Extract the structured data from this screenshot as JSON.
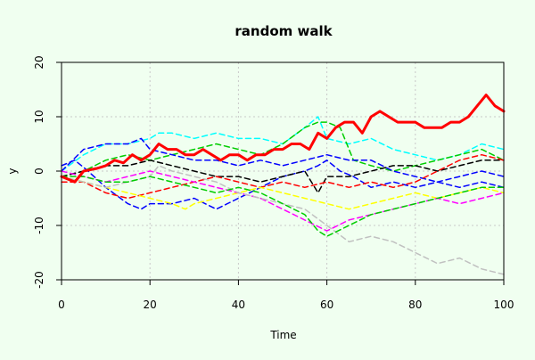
{
  "chart_data": {
    "type": "line",
    "title": "random walk",
    "xlabel": "Time",
    "ylabel": "y",
    "xlim": [
      0,
      100
    ],
    "ylim": [
      -20,
      20
    ],
    "x_ticks": [
      0,
      20,
      40,
      60,
      80,
      100
    ],
    "y_ticks": [
      -20,
      -10,
      0,
      10,
      20
    ],
    "grid": true,
    "legend": "none",
    "colors": {
      "background": "#f0fff0",
      "grid": "#c8c8c8",
      "axis": "#000000"
    },
    "series": [
      {
        "color": "#ff0000",
        "style": "solid",
        "width": 3,
        "points": [
          [
            0,
            -1
          ],
          [
            3,
            -2
          ],
          [
            5,
            0
          ],
          [
            8,
            0.5
          ],
          [
            10,
            1
          ],
          [
            12,
            2
          ],
          [
            14,
            1.5
          ],
          [
            16,
            3
          ],
          [
            18,
            2
          ],
          [
            20,
            3
          ],
          [
            22,
            5
          ],
          [
            24,
            4
          ],
          [
            26,
            4
          ],
          [
            28,
            3
          ],
          [
            30,
            3
          ],
          [
            32,
            4
          ],
          [
            34,
            3
          ],
          [
            36,
            2
          ],
          [
            38,
            3
          ],
          [
            40,
            3
          ],
          [
            42,
            2
          ],
          [
            44,
            3
          ],
          [
            46,
            3
          ],
          [
            48,
            4
          ],
          [
            50,
            4
          ],
          [
            52,
            5
          ],
          [
            54,
            5
          ],
          [
            56,
            4
          ],
          [
            58,
            7
          ],
          [
            60,
            6
          ],
          [
            62,
            8
          ],
          [
            64,
            9
          ],
          [
            66,
            9
          ],
          [
            68,
            7
          ],
          [
            70,
            10
          ],
          [
            72,
            11
          ],
          [
            74,
            10
          ],
          [
            76,
            9
          ],
          [
            78,
            9
          ],
          [
            80,
            9
          ],
          [
            82,
            8
          ],
          [
            84,
            8
          ],
          [
            86,
            8
          ],
          [
            88,
            9
          ],
          [
            90,
            9
          ],
          [
            92,
            10
          ],
          [
            94,
            12
          ],
          [
            96,
            14
          ],
          [
            98,
            12
          ],
          [
            100,
            11
          ]
        ]
      },
      {
        "color": "#00ffff",
        "style": "dashed",
        "width": 1.5,
        "points": [
          [
            0,
            0
          ],
          [
            5,
            3
          ],
          [
            10,
            5
          ],
          [
            15,
            5
          ],
          [
            20,
            6
          ],
          [
            22,
            7
          ],
          [
            25,
            7
          ],
          [
            30,
            6
          ],
          [
            35,
            7
          ],
          [
            40,
            6
          ],
          [
            45,
            6
          ],
          [
            50,
            5
          ],
          [
            55,
            8
          ],
          [
            58,
            10
          ],
          [
            60,
            6
          ],
          [
            65,
            5
          ],
          [
            70,
            6
          ],
          [
            75,
            4
          ],
          [
            80,
            3
          ],
          [
            85,
            2
          ],
          [
            90,
            3
          ],
          [
            95,
            5
          ],
          [
            100,
            4
          ]
        ]
      },
      {
        "color": "#00cd00",
        "style": "dashed",
        "width": 1.5,
        "points": [
          [
            0,
            -1
          ],
          [
            5,
            0
          ],
          [
            10,
            2
          ],
          [
            15,
            3
          ],
          [
            20,
            2
          ],
          [
            25,
            3
          ],
          [
            30,
            4
          ],
          [
            35,
            5
          ],
          [
            40,
            4
          ],
          [
            45,
            3
          ],
          [
            50,
            5
          ],
          [
            55,
            8
          ],
          [
            58,
            9
          ],
          [
            60,
            9
          ],
          [
            63,
            8
          ],
          [
            66,
            2
          ],
          [
            70,
            1
          ],
          [
            75,
            0
          ],
          [
            80,
            1
          ],
          [
            85,
            2
          ],
          [
            90,
            3
          ],
          [
            95,
            4
          ],
          [
            100,
            2
          ]
        ]
      },
      {
        "color": "#0000ff",
        "style": "dashed",
        "width": 1.5,
        "points": [
          [
            0,
            1
          ],
          [
            3,
            2
          ],
          [
            6,
            0
          ],
          [
            10,
            -3
          ],
          [
            15,
            -6
          ],
          [
            18,
            -7
          ],
          [
            20,
            -6
          ],
          [
            25,
            -6
          ],
          [
            30,
            -5
          ],
          [
            35,
            -7
          ],
          [
            40,
            -5
          ],
          [
            45,
            -3
          ],
          [
            50,
            -1
          ],
          [
            55,
            0
          ],
          [
            58,
            1
          ],
          [
            60,
            2
          ],
          [
            63,
            0
          ],
          [
            66,
            -1
          ],
          [
            70,
            -3
          ],
          [
            75,
            -2
          ],
          [
            80,
            -3
          ],
          [
            85,
            -2
          ],
          [
            90,
            -1
          ],
          [
            95,
            0
          ],
          [
            100,
            -1
          ]
        ]
      },
      {
        "color": "#0000ff",
        "style": "dashed",
        "width": 1.5,
        "points": [
          [
            0,
            0
          ],
          [
            5,
            4
          ],
          [
            10,
            5
          ],
          [
            15,
            5
          ],
          [
            18,
            6
          ],
          [
            20,
            4
          ],
          [
            25,
            3
          ],
          [
            30,
            2
          ],
          [
            35,
            2
          ],
          [
            40,
            1
          ],
          [
            45,
            2
          ],
          [
            50,
            1
          ],
          [
            55,
            2
          ],
          [
            60,
            3
          ],
          [
            65,
            2
          ],
          [
            70,
            2
          ],
          [
            75,
            0
          ],
          [
            80,
            -1
          ],
          [
            85,
            -2
          ],
          [
            90,
            -3
          ],
          [
            95,
            -2
          ],
          [
            100,
            -3
          ]
        ]
      },
      {
        "color": "#000000",
        "style": "dashed",
        "width": 1.5,
        "points": [
          [
            0,
            -1
          ],
          [
            5,
            0
          ],
          [
            10,
            1
          ],
          [
            15,
            1
          ],
          [
            20,
            2
          ],
          [
            25,
            1
          ],
          [
            30,
            0
          ],
          [
            35,
            -1
          ],
          [
            40,
            -1
          ],
          [
            45,
            -2
          ],
          [
            50,
            -1
          ],
          [
            55,
            0
          ],
          [
            58,
            -4
          ],
          [
            60,
            -1
          ],
          [
            65,
            -1
          ],
          [
            70,
            0
          ],
          [
            75,
            1
          ],
          [
            80,
            1
          ],
          [
            85,
            0
          ],
          [
            90,
            1
          ],
          [
            95,
            2
          ],
          [
            100,
            2
          ]
        ]
      },
      {
        "color": "#ff0000",
        "style": "dashed",
        "width": 1.5,
        "points": [
          [
            0,
            -2
          ],
          [
            5,
            -2
          ],
          [
            10,
            -4
          ],
          [
            15,
            -5
          ],
          [
            20,
            -4
          ],
          [
            25,
            -3
          ],
          [
            30,
            -2
          ],
          [
            35,
            -1
          ],
          [
            40,
            -2
          ],
          [
            45,
            -3
          ],
          [
            50,
            -2
          ],
          [
            55,
            -3
          ],
          [
            60,
            -2
          ],
          [
            65,
            -3
          ],
          [
            70,
            -2
          ],
          [
            75,
            -3
          ],
          [
            80,
            -2
          ],
          [
            85,
            0
          ],
          [
            90,
            2
          ],
          [
            95,
            3
          ],
          [
            100,
            2
          ]
        ]
      },
      {
        "color": "#ffff00",
        "style": "dashed",
        "width": 1.5,
        "points": [
          [
            0,
            -1
          ],
          [
            5,
            -2
          ],
          [
            10,
            -3
          ],
          [
            15,
            -4
          ],
          [
            20,
            -5
          ],
          [
            25,
            -6
          ],
          [
            28,
            -7
          ],
          [
            30,
            -6
          ],
          [
            35,
            -5
          ],
          [
            40,
            -4
          ],
          [
            45,
            -3
          ],
          [
            50,
            -4
          ],
          [
            55,
            -5
          ],
          [
            60,
            -6
          ],
          [
            65,
            -7
          ],
          [
            70,
            -6
          ],
          [
            75,
            -5
          ],
          [
            80,
            -4
          ],
          [
            85,
            -5
          ],
          [
            90,
            -4
          ],
          [
            95,
            -3
          ],
          [
            100,
            -4
          ]
        ]
      },
      {
        "color": "#ff00ff",
        "style": "dashed",
        "width": 1.5,
        "points": [
          [
            0,
            0
          ],
          [
            5,
            -1
          ],
          [
            10,
            -2
          ],
          [
            15,
            -1
          ],
          [
            20,
            0
          ],
          [
            25,
            -1
          ],
          [
            30,
            -2
          ],
          [
            35,
            -3
          ],
          [
            40,
            -4
          ],
          [
            45,
            -5
          ],
          [
            50,
            -7
          ],
          [
            55,
            -9
          ],
          [
            60,
            -11
          ],
          [
            65,
            -9
          ],
          [
            70,
            -8
          ],
          [
            75,
            -7
          ],
          [
            80,
            -6
          ],
          [
            85,
            -5
          ],
          [
            90,
            -6
          ],
          [
            95,
            -5
          ],
          [
            100,
            -4
          ]
        ]
      },
      {
        "color": "#c0c0c0",
        "style": "dashed",
        "width": 1.5,
        "points": [
          [
            0,
            -1
          ],
          [
            5,
            -2
          ],
          [
            10,
            -3
          ],
          [
            15,
            -2
          ],
          [
            20,
            -1
          ],
          [
            22,
            1
          ],
          [
            25,
            0
          ],
          [
            30,
            -1
          ],
          [
            35,
            -2
          ],
          [
            40,
            -4
          ],
          [
            45,
            -5
          ],
          [
            50,
            -6
          ],
          [
            55,
            -7
          ],
          [
            60,
            -10
          ],
          [
            65,
            -13
          ],
          [
            70,
            -12
          ],
          [
            75,
            -13
          ],
          [
            80,
            -15
          ],
          [
            85,
            -17
          ],
          [
            90,
            -16
          ],
          [
            95,
            -18
          ],
          [
            100,
            -19
          ]
        ]
      },
      {
        "color": "#00cd00",
        "style": "dashed",
        "width": 1.5,
        "points": [
          [
            0,
            -1
          ],
          [
            5,
            -1
          ],
          [
            10,
            -2
          ],
          [
            15,
            -2
          ],
          [
            20,
            -1
          ],
          [
            25,
            -2
          ],
          [
            30,
            -3
          ],
          [
            35,
            -4
          ],
          [
            40,
            -3
          ],
          [
            45,
            -4
          ],
          [
            50,
            -6
          ],
          [
            55,
            -8
          ],
          [
            58,
            -11
          ],
          [
            60,
            -12
          ],
          [
            65,
            -10
          ],
          [
            70,
            -8
          ],
          [
            75,
            -7
          ],
          [
            80,
            -6
          ],
          [
            85,
            -5
          ],
          [
            90,
            -4
          ],
          [
            95,
            -3
          ],
          [
            100,
            -3
          ]
        ]
      }
    ]
  }
}
